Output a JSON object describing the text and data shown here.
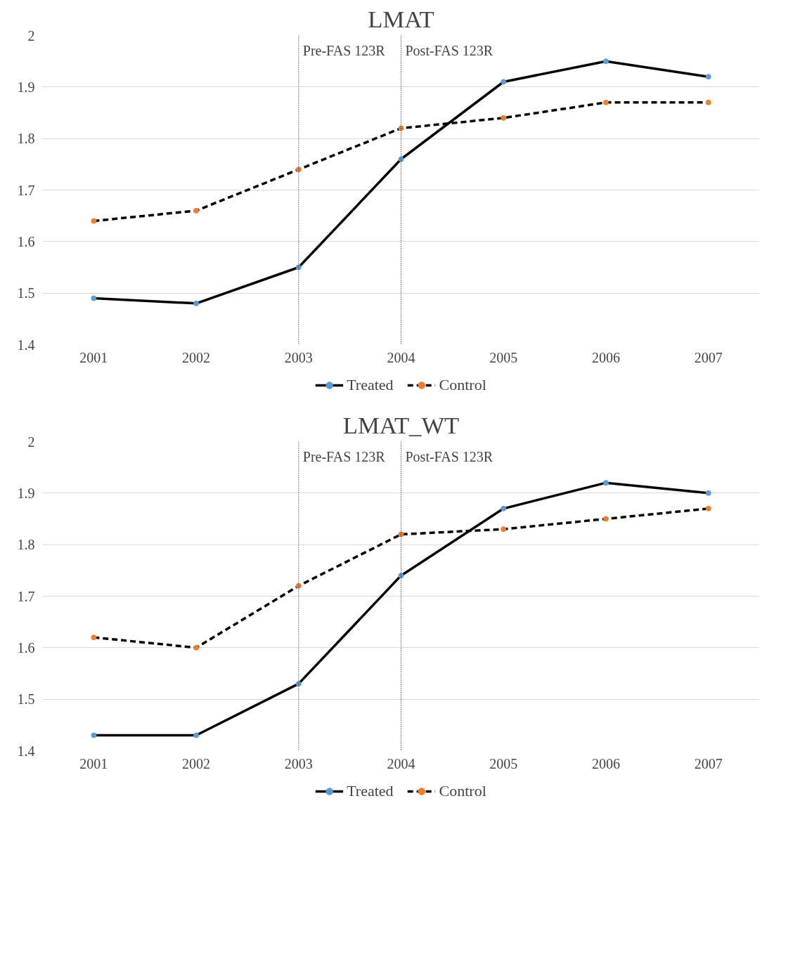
{
  "chart_data": [
    {
      "type": "line",
      "title": "LMAT",
      "categories": [
        "2001",
        "2002",
        "2003",
        "2004",
        "2005",
        "2006",
        "2007"
      ],
      "series": [
        {
          "name": "Treated",
          "color": "#000000",
          "colors": [
            "#5b9bd5",
            "#5b9bd5",
            "#5b9bd5",
            "#5b9bd5",
            "#5b9bd5",
            "#5b9bd5",
            "#5b9bd5"
          ],
          "line_style": "solid",
          "values": [
            1.49,
            1.48,
            1.55,
            1.76,
            1.91,
            1.95,
            1.92
          ]
        },
        {
          "name": "Control",
          "color": "#000000",
          "colors": [
            "#ed7d31",
            "#ed7d31",
            "#ed7d31",
            "#ed7d31",
            "#ed7d31",
            "#ed7d31",
            "#ed7d31"
          ],
          "line_style": "dashed",
          "values": [
            1.64,
            1.66,
            1.74,
            1.82,
            1.84,
            1.87,
            1.87
          ]
        }
      ],
      "ylim": [
        1.4,
        2.0
      ],
      "yticks": [
        1.4,
        1.5,
        1.6,
        1.7,
        1.8,
        1.9,
        2
      ],
      "grid": "y",
      "legend": "bottom",
      "marker": "circle",
      "ref_lines": [
        {
          "axis": "x",
          "value": "2003",
          "label": "Pre-FAS 123R",
          "line_style": "dotted",
          "color": "#000000"
        },
        {
          "axis": "x",
          "value": "2004",
          "label": "Post-FAS 123R",
          "line_style": "dotted",
          "color": "#000000"
        }
      ]
    },
    {
      "type": "line",
      "title": "LMAT_WT",
      "categories": [
        "2001",
        "2002",
        "2003",
        "2004",
        "2005",
        "2006",
        "2007"
      ],
      "series": [
        {
          "name": "Treated",
          "color": "#000000",
          "colors": [
            "#5b9bd5",
            "#5b9bd5",
            "#5b9bd5",
            "#5b9bd5",
            "#5b9bd5",
            "#5b9bd5",
            "#5b9bd5"
          ],
          "line_style": "solid",
          "values": [
            1.43,
            1.43,
            1.53,
            1.74,
            1.87,
            1.92,
            1.9
          ]
        },
        {
          "name": "Control",
          "color": "#000000",
          "colors": [
            "#ed7d31",
            "#ed7d31",
            "#ed7d31",
            "#ed7d31",
            "#ed7d31",
            "#ed7d31",
            "#ed7d31"
          ],
          "line_style": "dashed",
          "values": [
            1.62,
            1.6,
            1.72,
            1.82,
            1.83,
            1.85,
            1.87
          ]
        }
      ],
      "ylim": [
        1.4,
        2.0
      ],
      "yticks": [
        1.4,
        1.5,
        1.6,
        1.7,
        1.8,
        1.9,
        2
      ],
      "grid": "y",
      "legend": "bottom",
      "marker": "circle",
      "ref_lines": [
        {
          "axis": "x",
          "value": "2003",
          "label": "Pre-FAS 123R",
          "line_style": "dotted",
          "color": "#000000"
        },
        {
          "axis": "x",
          "value": "2004",
          "label": "Post-FAS 123R",
          "line_style": "dotted",
          "color": "#000000"
        }
      ]
    }
  ]
}
